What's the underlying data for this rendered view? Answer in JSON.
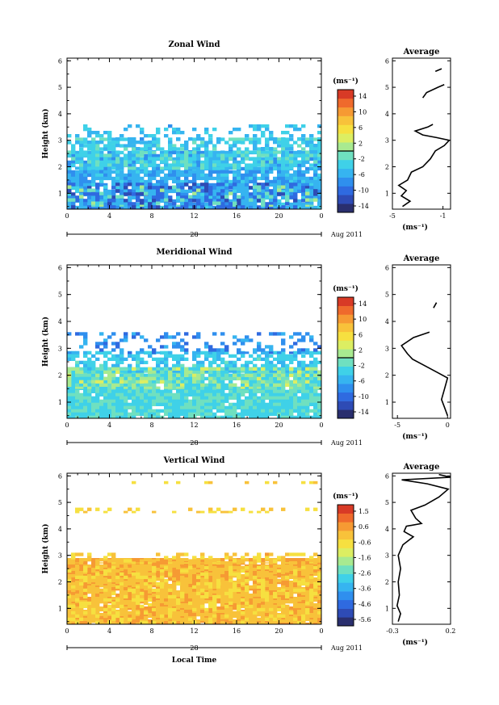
{
  "chart_data": [
    {
      "type": "heatmap",
      "title": "Zonal Wind",
      "ylabel": "Height (km)",
      "xticks": [
        "0",
        "4",
        "8",
        "12",
        "16",
        "20",
        "0"
      ],
      "yticks": [
        "1",
        "2",
        "3",
        "4",
        "5",
        "6"
      ],
      "day_label": "28",
      "date_label": "Aug 2011",
      "xlim": [
        0,
        24
      ],
      "ylim": [
        0.4,
        6.1
      ],
      "colorbar": {
        "unit": "(ms⁻¹)",
        "ticks": [
          "14",
          "10",
          "6",
          "2",
          "-2",
          "-6",
          "-10",
          "-14"
        ],
        "range": [
          -16,
          16
        ],
        "contour_level_label": 0
      },
      "layers": [
        {
          "y0": 0.4,
          "y1": 2.6,
          "value": -6.0,
          "density": 0.85
        },
        {
          "y0": 0.4,
          "y1": 1.4,
          "value": -11.0,
          "density": 0.35
        },
        {
          "y0": 1.9,
          "y1": 3.1,
          "value": -3.0,
          "density": 0.55
        },
        {
          "y0": 2.6,
          "y1": 3.6,
          "value": -5.0,
          "density": 0.25
        },
        {
          "y0": 0.5,
          "y1": 1.3,
          "value": -1.0,
          "density": 0.12
        }
      ],
      "average": {
        "title": "Average",
        "xlabel": "(ms⁻¹)",
        "xlim": [
          -5,
          -0.4
        ],
        "xticks": [
          "-5",
          "-1"
        ],
        "yticks": [
          "1",
          "2",
          "3",
          "4",
          "5",
          "6"
        ],
        "ylim": [
          0.4,
          6.1
        ],
        "profile": [
          [
            -4.2,
            0.5
          ],
          [
            -3.6,
            0.7
          ],
          [
            -4.3,
            0.9
          ],
          [
            -3.9,
            1.1
          ],
          [
            -4.5,
            1.3
          ],
          [
            -3.8,
            1.5
          ],
          [
            -3.5,
            1.8
          ],
          [
            -2.6,
            2.0
          ],
          [
            -2.0,
            2.3
          ],
          [
            -1.6,
            2.6
          ],
          [
            -0.9,
            2.8
          ],
          [
            -0.5,
            3.0
          ],
          [
            -1.5,
            3.1
          ],
          [
            -2.6,
            3.2
          ],
          [
            -3.2,
            3.35
          ],
          [
            -2.2,
            3.5
          ],
          [
            -1.8,
            3.6
          ]
        ],
        "profile_upper": [
          [
            -2.6,
            4.6
          ],
          [
            -2.3,
            4.8
          ],
          [
            -1.4,
            5.0
          ],
          [
            -0.9,
            5.1
          ]
        ],
        "profile_top": [
          [
            -1.6,
            5.6
          ],
          [
            -1.1,
            5.7
          ]
        ]
      }
    },
    {
      "type": "heatmap",
      "title": "Meridional Wind",
      "ylabel": "Height (km)",
      "xticks": [
        "0",
        "4",
        "8",
        "12",
        "16",
        "20",
        "0"
      ],
      "yticks": [
        "1",
        "2",
        "3",
        "4",
        "5",
        "6"
      ],
      "day_label": "28",
      "date_label": "Aug 2011",
      "xlim": [
        0,
        24
      ],
      "ylim": [
        0.4,
        6.1
      ],
      "colorbar": {
        "unit": "(ms⁻¹)",
        "ticks": [
          "14",
          "10",
          "6",
          "2",
          "-2",
          "-6",
          "-10",
          "-14"
        ],
        "range": [
          -16,
          16
        ],
        "contour_level_label": 0
      },
      "layers": [
        {
          "y0": 0.4,
          "y1": 2.3,
          "value": -2.5,
          "density": 0.92
        },
        {
          "y0": 2.1,
          "y1": 2.9,
          "value": -4.0,
          "density": 0.6
        },
        {
          "y0": 2.8,
          "y1": 3.6,
          "value": -8.0,
          "density": 0.3
        },
        {
          "y0": 1.5,
          "y1": 2.3,
          "value": 1.0,
          "density": 0.35
        }
      ],
      "average": {
        "title": "Average",
        "xlabel": "(ms⁻¹)",
        "xlim": [
          -5.5,
          0.3
        ],
        "xticks": [
          "-5",
          "0"
        ],
        "yticks": [
          "1",
          "2",
          "3",
          "4",
          "5",
          "6"
        ],
        "ylim": [
          0.4,
          6.1
        ],
        "profile": [
          [
            0.0,
            0.5
          ],
          [
            -0.3,
            0.8
          ],
          [
            -0.6,
            1.1
          ],
          [
            -0.3,
            1.5
          ],
          [
            0.0,
            1.9
          ],
          [
            -1.0,
            2.1
          ],
          [
            -2.5,
            2.4
          ],
          [
            -3.5,
            2.6
          ],
          [
            -4.0,
            2.8
          ],
          [
            -4.6,
            3.1
          ],
          [
            -3.4,
            3.4
          ],
          [
            -1.8,
            3.6
          ]
        ],
        "profile_upper": [
          [
            -1.4,
            4.5
          ],
          [
            -1.1,
            4.7
          ]
        ],
        "profile_top": []
      }
    },
    {
      "type": "heatmap",
      "title": "Vertical Wind",
      "ylabel": "Height (km)",
      "xlabel": "Local Time",
      "xticks": [
        "0",
        "4",
        "8",
        "12",
        "16",
        "20",
        "0"
      ],
      "yticks": [
        "1",
        "2",
        "3",
        "4",
        "5",
        "6"
      ],
      "day_label": "28",
      "date_label": "Aug 2011",
      "xlim": [
        0,
        24
      ],
      "ylim": [
        0.4,
        6.1
      ],
      "colorbar": {
        "unit": "(ms⁻¹)",
        "ticks": [
          "1.5",
          "0.6",
          "-0.6",
          "-1.6",
          "-2.6",
          "-3.6",
          "-4.6",
          "-5.6"
        ],
        "range": [
          -6.2,
          2.2
        ],
        "contour_level_label": null
      },
      "layers": [
        {
          "y0": 0.4,
          "y1": 2.9,
          "value": 0.3,
          "density": 0.95
        },
        {
          "y0": 0.4,
          "y1": 2.6,
          "value": -0.2,
          "density": 0.45
        },
        {
          "y0": 2.7,
          "y1": 3.1,
          "value": -0.1,
          "density": 0.35
        },
        {
          "y0": 4.6,
          "y1": 4.8,
          "value": -0.2,
          "density": 0.15
        },
        {
          "y0": 5.7,
          "y1": 5.8,
          "value": -0.2,
          "density": 0.2
        }
      ],
      "average": {
        "title": "Average",
        "xlabel": "(ms⁻¹)",
        "xlim": [
          -0.3,
          0.2
        ],
        "xticks": [
          "-0.3",
          "0.2"
        ],
        "yticks": [
          "1",
          "2",
          "3",
          "4",
          "5",
          "6"
        ],
        "ylim": [
          0.4,
          6.1
        ],
        "profile": [
          [
            -0.25,
            0.5
          ],
          [
            -0.23,
            0.8
          ],
          [
            -0.26,
            1.1
          ],
          [
            -0.24,
            1.5
          ],
          [
            -0.25,
            2.0
          ],
          [
            -0.23,
            2.5
          ],
          [
            -0.25,
            3.0
          ],
          [
            -0.21,
            3.4
          ],
          [
            -0.12,
            3.7
          ],
          [
            -0.2,
            3.9
          ],
          [
            -0.18,
            4.1
          ],
          [
            -0.05,
            4.2
          ],
          [
            -0.1,
            4.4
          ],
          [
            -0.14,
            4.7
          ],
          [
            -0.02,
            4.9
          ],
          [
            0.1,
            5.2
          ],
          [
            0.18,
            5.5
          ],
          [
            0.0,
            5.7
          ],
          [
            -0.22,
            5.85
          ],
          [
            0.2,
            5.95
          ],
          [
            0.1,
            6.05
          ]
        ],
        "profile_upper": [],
        "profile_top": []
      }
    }
  ]
}
